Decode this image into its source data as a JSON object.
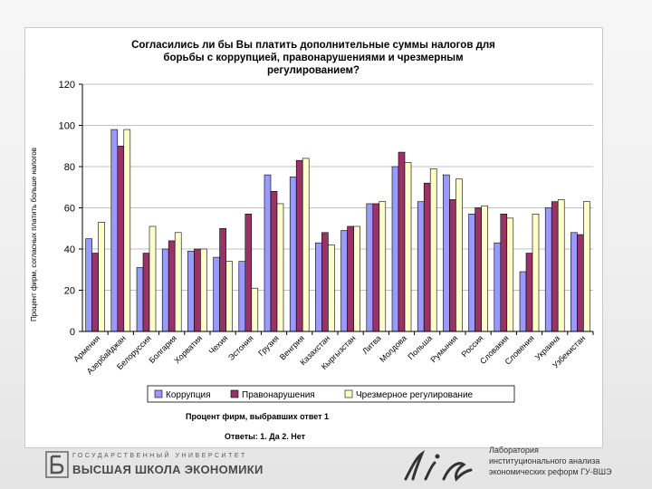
{
  "chart_data": {
    "type": "bar",
    "title": "Согласились ли бы Вы платить дополнительные суммы налогов для борьбы с коррупцией, правонарушениями и чрезмерным регулированием?",
    "title_lines": [
      "Согласились ли бы Вы платить дополнительные суммы налогов для",
      "борьбы с коррупцией, правонарушениями и чрезмерным",
      "регулированием?"
    ],
    "ylabel": "Процент фирм, согласных платить больше налогов",
    "xlabel": "",
    "ylim": [
      0,
      120
    ],
    "yticks": [
      "0",
      "20",
      "40",
      "60",
      "80",
      "100",
      "120"
    ],
    "grid": true,
    "legend_position": "bottom",
    "categories": [
      "Армения",
      "Азербайджан",
      "Белоруссия",
      "Болгария",
      "Хорватия",
      "Чехия",
      "Эстония",
      "Грузия",
      "Венгрия",
      "Казахстан",
      "Кыргызстан",
      "Литва",
      "Молдова",
      "Польша",
      "Румыния",
      "Россия",
      "Словакия",
      "Словения",
      "Украина",
      "Узбекистан"
    ],
    "series": [
      {
        "name": "Коррупция",
        "color": "#9999ff",
        "values": [
          45,
          98,
          31,
          40,
          39,
          36,
          34,
          76,
          75,
          43,
          49,
          62,
          80,
          63,
          76,
          57,
          43,
          29,
          60,
          48
        ]
      },
      {
        "name": "Правонарушения",
        "color": "#993366",
        "values": [
          38,
          90,
          38,
          44,
          40,
          50,
          57,
          68,
          83,
          48,
          51,
          62,
          87,
          72,
          64,
          60,
          57,
          38,
          63,
          47
        ]
      },
      {
        "name": "Чрезмерное регулирование",
        "color": "#ffffcc",
        "values": [
          53,
          98,
          51,
          48,
          40,
          34,
          21,
          62,
          84,
          42,
          51,
          63,
          82,
          79,
          74,
          61,
          55,
          57,
          64,
          63
        ]
      }
    ]
  },
  "notes": {
    "line1": "Процент фирм, выбравших ответ 1",
    "line2": "Ответы:   1. Да    2. Нет"
  },
  "footer": {
    "university_small": "ГОСУДАРСТВЕННЫЙ УНИВЕРСИТЕТ",
    "university_big": "ВЫСШАЯ ШКОЛА ЭКОНОМИКИ",
    "lab_line1": "Лаборатория",
    "lab_line2": "институционального анализа",
    "lab_line3": "экономических реформ ГУ-ВШЭ"
  }
}
